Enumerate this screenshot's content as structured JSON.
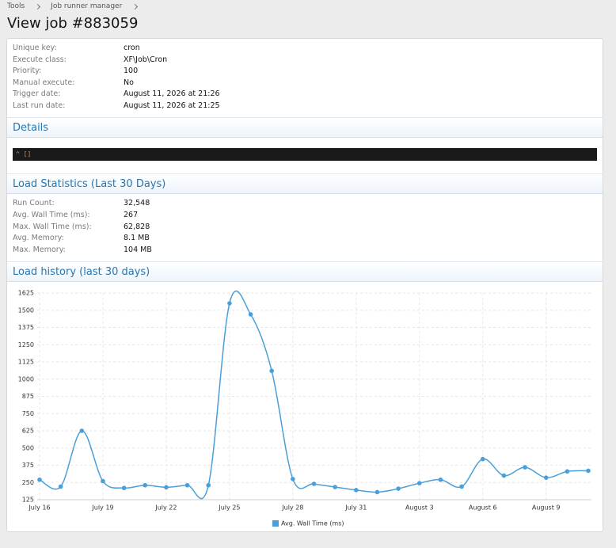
{
  "breadcrumb": [
    "Tools",
    "Job runner manager"
  ],
  "title": "View job #883059",
  "info": [
    {
      "label": "Unique key:",
      "value": "cron"
    },
    {
      "label": "Execute class:",
      "value": "XF\\Job\\Cron"
    },
    {
      "label": "Priority:",
      "value": "100"
    },
    {
      "label": "Manual execute:",
      "value": "No"
    },
    {
      "label": "Trigger date:",
      "value": "August 11, 2026 at 21:26"
    },
    {
      "label": "Last run date:",
      "value": "August 11, 2026 at 21:25"
    }
  ],
  "details": {
    "heading": "Details",
    "code": "^ []"
  },
  "stats": {
    "heading": "Load Statistics (Last 30 Days)",
    "rows": [
      {
        "label": "Run Count:",
        "value": "32,548"
      },
      {
        "label": "Avg. Wall Time (ms):",
        "value": "267"
      },
      {
        "label": "Max. Wall Time (ms):",
        "value": "62,828"
      },
      {
        "label": "Avg. Memory:",
        "value": "8.1 MB"
      },
      {
        "label": "Max. Memory:",
        "value": "104 MB"
      }
    ]
  },
  "history_heading": "Load history (last 30 days)",
  "chart_data": {
    "type": "line",
    "categories": [
      "July 16",
      null,
      null,
      "July 19",
      null,
      null,
      "July 22",
      null,
      null,
      "July 25",
      null,
      null,
      "July 28",
      null,
      null,
      "July 31",
      null,
      null,
      "August 3",
      null,
      null,
      "August 6",
      null,
      null,
      "August 9",
      null,
      null
    ],
    "series": [
      {
        "name": "Avg. Wall Time (ms)",
        "color": "#4a9fd8",
        "values": [
          270,
          220,
          625,
          260,
          210,
          230,
          215,
          230,
          230,
          1550,
          1470,
          1060,
          275,
          240,
          217,
          195,
          180,
          205,
          245,
          270,
          220,
          420,
          300,
          360,
          285,
          330,
          335
        ]
      }
    ],
    "ylim": [
      125,
      1625
    ],
    "yticks": [
      125,
      250,
      375,
      500,
      625,
      750,
      875,
      1000,
      1125,
      1250,
      1375,
      1500,
      1625
    ],
    "grid": true,
    "legend": "bottom"
  }
}
